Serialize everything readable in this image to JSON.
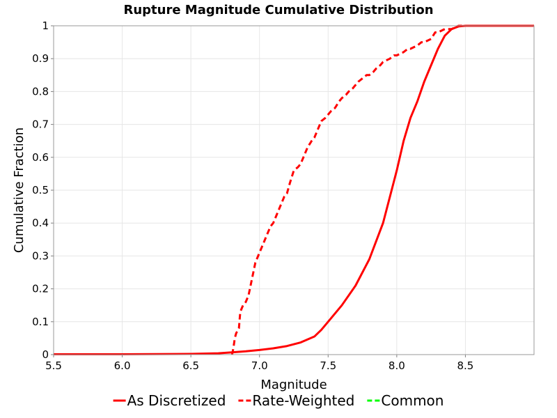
{
  "chart_data": {
    "type": "line",
    "title": "Rupture Magnitude Cumulative Distribution",
    "xlabel": "Magnitude",
    "ylabel": "Cumulative Fraction",
    "xlim": [
      5.5,
      9.0
    ],
    "ylim": [
      0,
      1
    ],
    "grid": true,
    "legend_position": "bottom",
    "x_ticks": [
      "5.5",
      "6.0",
      "6.5",
      "7.0",
      "7.5",
      "8.0",
      "8.5"
    ],
    "y_ticks": [
      "0",
      "0.1",
      "0.2",
      "0.3",
      "0.4",
      "0.5",
      "0.6",
      "0.7",
      "0.8",
      "0.9",
      "1"
    ],
    "series": [
      {
        "name": "As Discretized",
        "color": "#ff0000",
        "dash": "solid",
        "x": [
          5.5,
          6.0,
          6.5,
          6.7,
          6.8,
          6.9,
          7.0,
          7.1,
          7.2,
          7.3,
          7.4,
          7.45,
          7.5,
          7.6,
          7.7,
          7.8,
          7.9,
          8.0,
          8.05,
          8.1,
          8.15,
          8.2,
          8.25,
          8.3,
          8.35,
          8.4,
          8.45,
          8.5,
          9.0
        ],
        "y": [
          0.001,
          0.001,
          0.002,
          0.004,
          0.007,
          0.01,
          0.014,
          0.019,
          0.026,
          0.037,
          0.055,
          0.075,
          0.1,
          0.15,
          0.21,
          0.29,
          0.4,
          0.56,
          0.65,
          0.72,
          0.77,
          0.83,
          0.88,
          0.93,
          0.97,
          0.99,
          0.998,
          1.0,
          1.0
        ]
      },
      {
        "name": "Rate-Weighted",
        "color": "#ff0000",
        "dash": "dashed",
        "x": [
          6.8,
          6.81,
          6.82,
          6.83,
          6.85,
          6.86,
          6.88,
          6.9,
          6.92,
          6.95,
          6.97,
          7.0,
          7.02,
          7.05,
          7.08,
          7.1,
          7.12,
          7.15,
          7.18,
          7.2,
          7.22,
          7.25,
          7.28,
          7.3,
          7.33,
          7.35,
          7.38,
          7.4,
          7.42,
          7.45,
          7.48,
          7.5,
          7.52,
          7.55,
          7.58,
          7.6,
          7.63,
          7.65,
          7.68,
          7.7,
          7.72,
          7.75,
          7.78,
          7.8,
          7.83,
          7.85,
          7.88,
          7.9,
          7.95,
          7.98,
          8.0,
          8.05,
          8.08,
          8.1,
          8.15,
          8.18,
          8.2,
          8.25,
          8.28,
          8.3,
          8.35,
          8.4,
          8.45,
          8.5,
          9.0
        ],
        "y": [
          0.0,
          0.02,
          0.05,
          0.065,
          0.08,
          0.13,
          0.15,
          0.16,
          0.18,
          0.24,
          0.28,
          0.31,
          0.33,
          0.36,
          0.39,
          0.4,
          0.42,
          0.45,
          0.48,
          0.49,
          0.52,
          0.56,
          0.57,
          0.58,
          0.61,
          0.63,
          0.65,
          0.66,
          0.68,
          0.71,
          0.72,
          0.73,
          0.74,
          0.75,
          0.77,
          0.78,
          0.79,
          0.8,
          0.81,
          0.82,
          0.83,
          0.84,
          0.85,
          0.85,
          0.86,
          0.87,
          0.88,
          0.89,
          0.9,
          0.91,
          0.91,
          0.92,
          0.93,
          0.93,
          0.94,
          0.95,
          0.95,
          0.96,
          0.98,
          0.98,
          0.99,
          0.99,
          1.0,
          1.0,
          1.0
        ]
      }
    ],
    "legend": [
      {
        "label": "As Discretized",
        "color": "#ff0000",
        "dash": "solid"
      },
      {
        "label": "Rate-Weighted",
        "color": "#ff0000",
        "dash": "dashed"
      },
      {
        "label": "Common",
        "color": "#00ff00",
        "dash": "dashed"
      }
    ]
  }
}
